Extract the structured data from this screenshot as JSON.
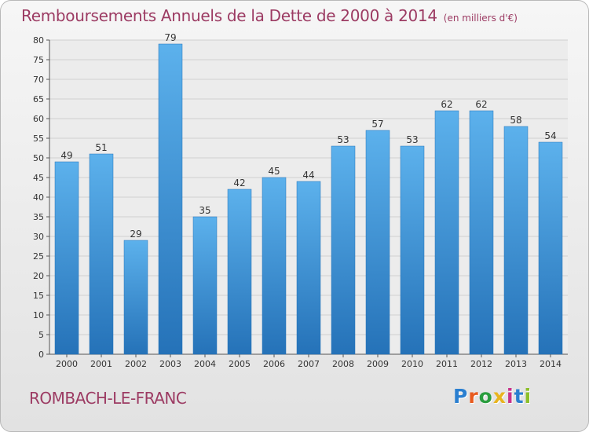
{
  "header": {
    "title": "Remboursements Annuels de la Dette de 2000 à 2014",
    "unit": "(en milliers d'€)"
  },
  "footer": {
    "location": "ROMBACH-LE-FRANC",
    "brand": {
      "letters": [
        "P",
        "r",
        "o",
        "x",
        "i",
        "t",
        "i"
      ],
      "colors": [
        "#2a7fd0",
        "#e85a1e",
        "#2a9d3e",
        "#e8b41e",
        "#c8328a",
        "#2a7fd0",
        "#8cbf2a"
      ]
    }
  },
  "colors": {
    "bar": "#3a94dc",
    "bar_light": "#5cb1ec",
    "bar_dark": "#2572b8",
    "title": "#9c3b63"
  },
  "chart_data": {
    "type": "bar",
    "categories": [
      "2000",
      "2001",
      "2002",
      "2003",
      "2004",
      "2005",
      "2006",
      "2007",
      "2008",
      "2009",
      "2010",
      "2011",
      "2012",
      "2013",
      "2014"
    ],
    "values": [
      49,
      51,
      29,
      79,
      35,
      42,
      45,
      44,
      53,
      57,
      53,
      62,
      62,
      58,
      54
    ],
    "title": "Remboursements Annuels de la Dette de 2000 à 2014",
    "xlabel": "",
    "ylabel": "",
    "ylim": [
      0,
      80
    ],
    "yticks": [
      0,
      5,
      10,
      15,
      20,
      25,
      30,
      35,
      40,
      45,
      50,
      55,
      60,
      65,
      70,
      75,
      80
    ],
    "grid": true,
    "legend": "none"
  }
}
